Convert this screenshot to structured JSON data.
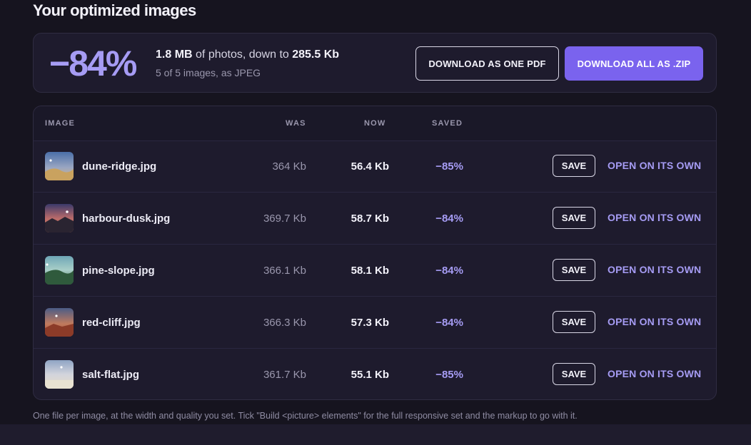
{
  "page": {
    "title": "Your optimized images"
  },
  "summary": {
    "percent": "−84%",
    "original_size": "1.8 MB",
    "text_mid": " of photos, down to ",
    "final_size": "285.5 Kb",
    "detail": "5 of 5 images, as JPEG",
    "pdf_label": "DOWNLOAD AS ONE PDF",
    "zip_label": "DOWNLOAD ALL AS .ZIP"
  },
  "table": {
    "headers": {
      "image": "IMAGE",
      "was": "WAS",
      "now": "NOW",
      "saved": "SAVED"
    },
    "rows": [
      {
        "name": "dune-ridge.jpg",
        "was": "364 Kb",
        "now": "56.4 Kb",
        "saved": "−85%",
        "save_label": "SAVE",
        "open_label": "OPEN ON ITS OWN",
        "thumb": "dune-ridge-thumbnail"
      },
      {
        "name": "harbour-dusk.jpg",
        "was": "369.7 Kb",
        "now": "58.7 Kb",
        "saved": "−84%",
        "save_label": "SAVE",
        "open_label": "OPEN ON ITS OWN",
        "thumb": "harbour-dusk-thumbnail"
      },
      {
        "name": "pine-slope.jpg",
        "was": "366.1 Kb",
        "now": "58.1 Kb",
        "saved": "−84%",
        "save_label": "SAVE",
        "open_label": "OPEN ON ITS OWN",
        "thumb": "pine-slope-thumbnail"
      },
      {
        "name": "red-cliff.jpg",
        "was": "366.3 Kb",
        "now": "57.3 Kb",
        "saved": "−84%",
        "save_label": "SAVE",
        "open_label": "OPEN ON ITS OWN",
        "thumb": "red-cliff-thumbnail"
      },
      {
        "name": "salt-flat.jpg",
        "was": "361.7 Kb",
        "now": "55.1 Kb",
        "saved": "−85%",
        "save_label": "SAVE",
        "open_label": "OPEN ON ITS OWN",
        "thumb": "salt-flat-thumbnail"
      }
    ]
  },
  "footnote": "One file per image, at the width and quality you set. Tick \"Build <picture> elements\" for the full responsive set and the markup to go with it.",
  "colors": {
    "accent": "#a69cf4",
    "primary_button": "#7a63ee",
    "background": "#16141f",
    "panel": "#1e1b2d"
  }
}
